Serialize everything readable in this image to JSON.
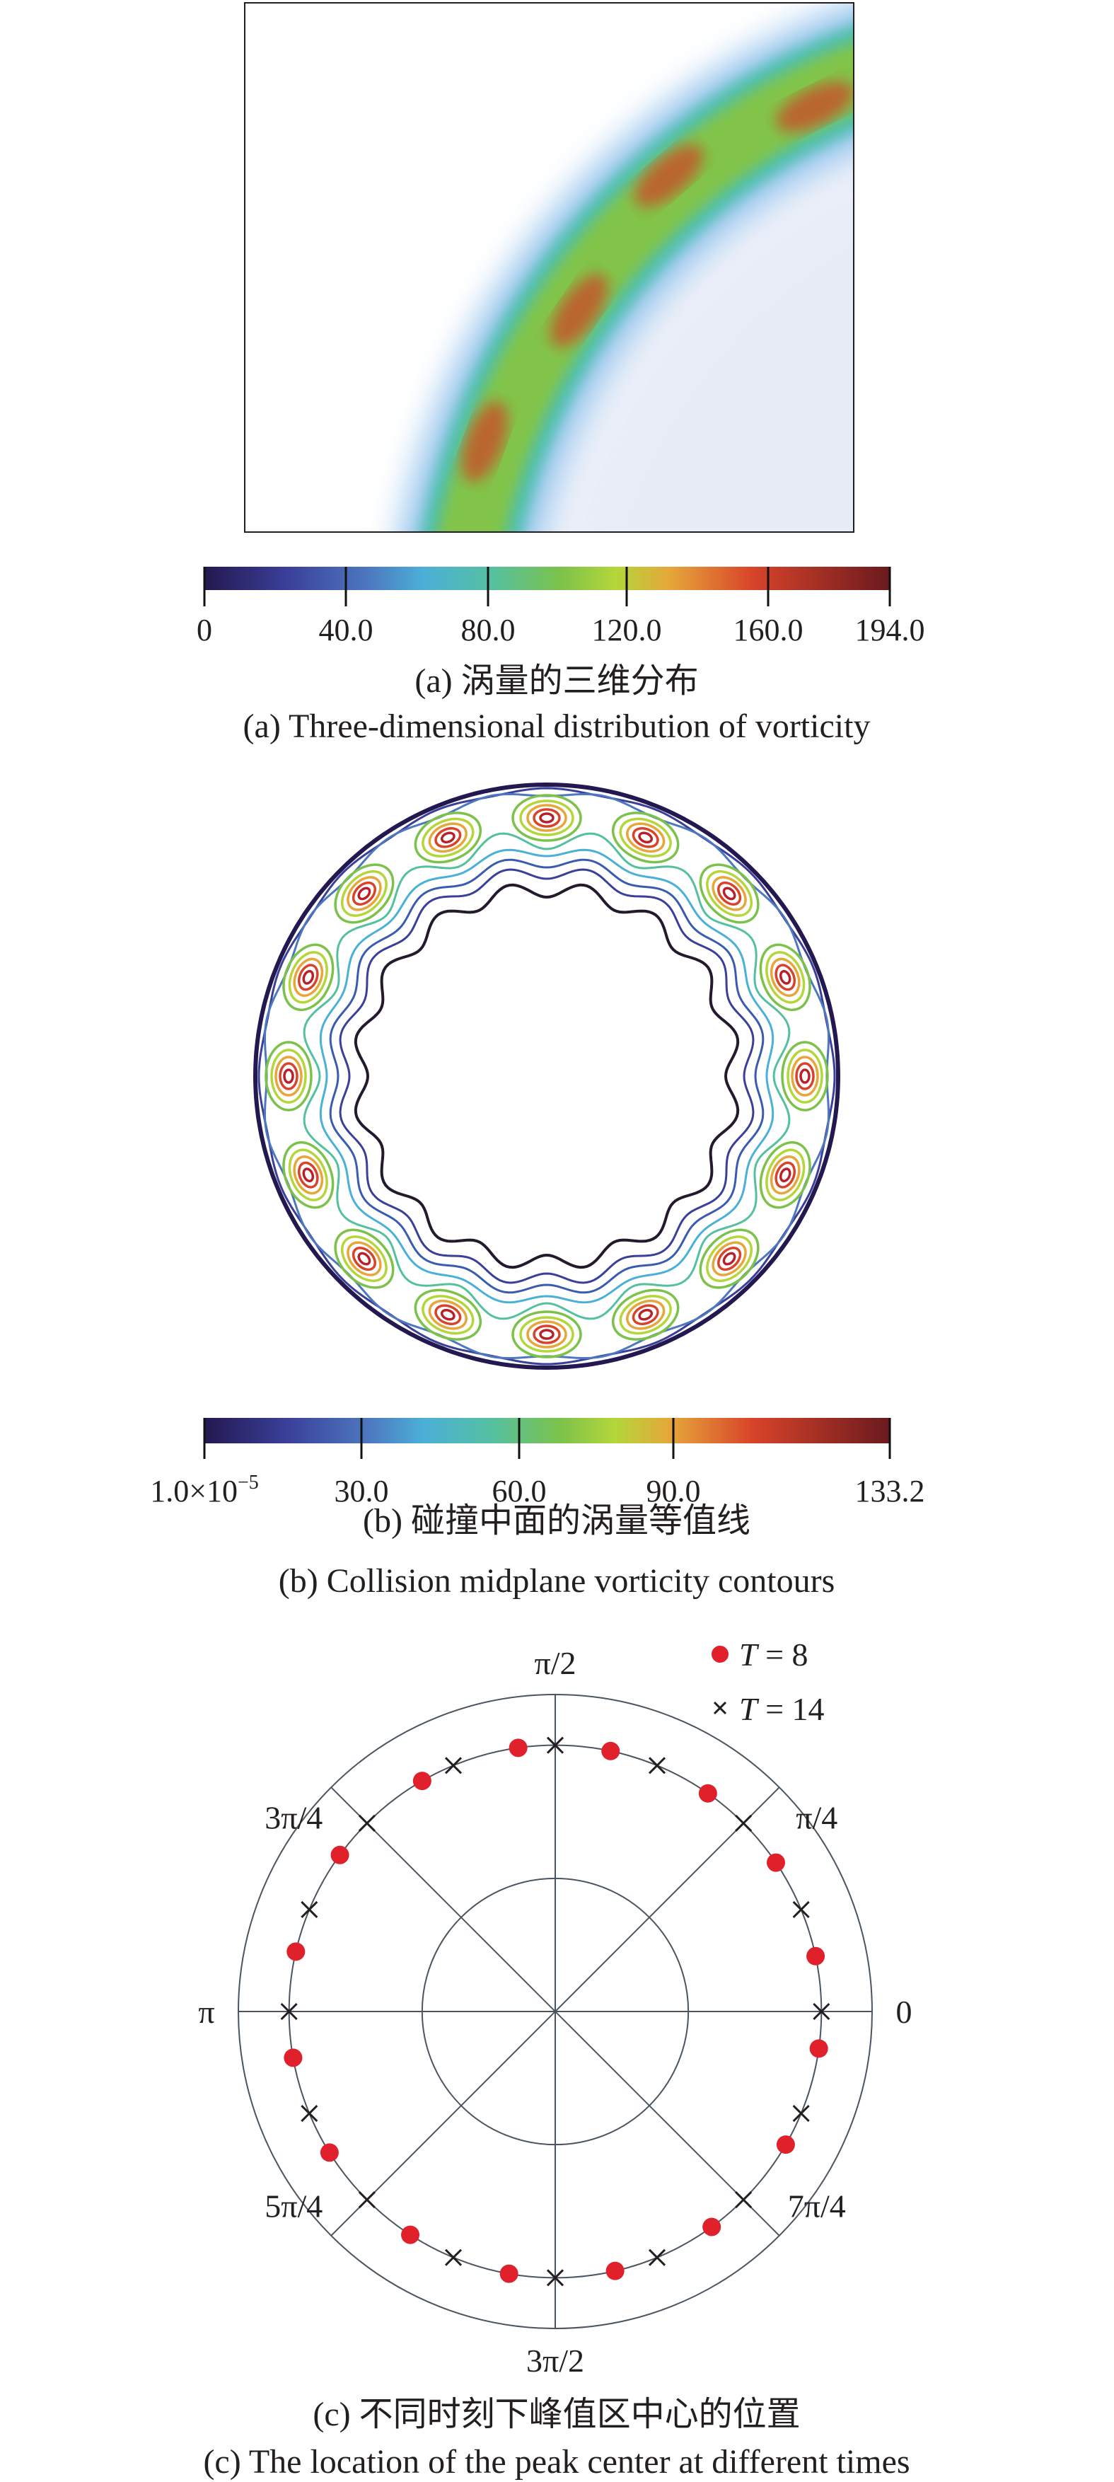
{
  "panel_a": {
    "colorbar": {
      "labels": [
        "0",
        "40.0",
        "80.0",
        "120.0",
        "160.0",
        "194.0"
      ],
      "min": 0,
      "max": 194
    },
    "caption_cn": "(a) 涡量的三维分布",
    "caption_en": "(a) Three-dimensional distribution of vorticity"
  },
  "panel_b": {
    "colorbar": {
      "label_min_base": "1.0×10",
      "label_min_exp": "−5",
      "labels": [
        "30.0",
        "60.0",
        "90.0",
        "133.2"
      ],
      "min": 1e-05,
      "max": 133.2
    },
    "caption_cn": "(b) 碰撞中面的涡量等值线",
    "caption_en": "(b) Collision midplane vorticity contours"
  },
  "panel_c": {
    "caption_cn": "(c) 不同时刻下峰值区中心的位置",
    "caption_en": "(c) The location of the peak center at different times"
  },
  "colors": {
    "t8": "#e0202a",
    "t14": "#231f20",
    "grid": "#4a5560"
  },
  "chart_data": {
    "type": "scatter",
    "coordinate_system": "polar",
    "angle_labels": [
      {
        "deg": 0,
        "text": "0"
      },
      {
        "deg": 45,
        "text": "π/4"
      },
      {
        "deg": 90,
        "text": "π/2"
      },
      {
        "deg": 135,
        "text": "3π/4"
      },
      {
        "deg": 180,
        "text": "π"
      },
      {
        "deg": 225,
        "text": "5π/4"
      },
      {
        "deg": 270,
        "text": "3π/2"
      },
      {
        "deg": 315,
        "text": "7π/4"
      }
    ],
    "radial_grid": [
      0.42,
      0.84,
      1.0
    ],
    "legend": {
      "placement": "top-right",
      "entries": [
        {
          "var": "T",
          "rest": " = 8"
        },
        {
          "var": "T",
          "rest": " = 14"
        }
      ]
    },
    "series": [
      {
        "name": "T = 8",
        "marker": "dot",
        "r": 0.84,
        "theta_deg": [
          12,
          34,
          55,
          78,
          98,
          120,
          144,
          167,
          190,
          212,
          237,
          260,
          283,
          306,
          330,
          352
        ]
      },
      {
        "name": "T = 14",
        "marker": "cross",
        "r": 0.84,
        "theta_deg": [
          0,
          22.5,
          45,
          67.5,
          90,
          112.5,
          135,
          157.5,
          180,
          202.5,
          225,
          247.5,
          270,
          292.5,
          315,
          337.5
        ]
      }
    ]
  }
}
